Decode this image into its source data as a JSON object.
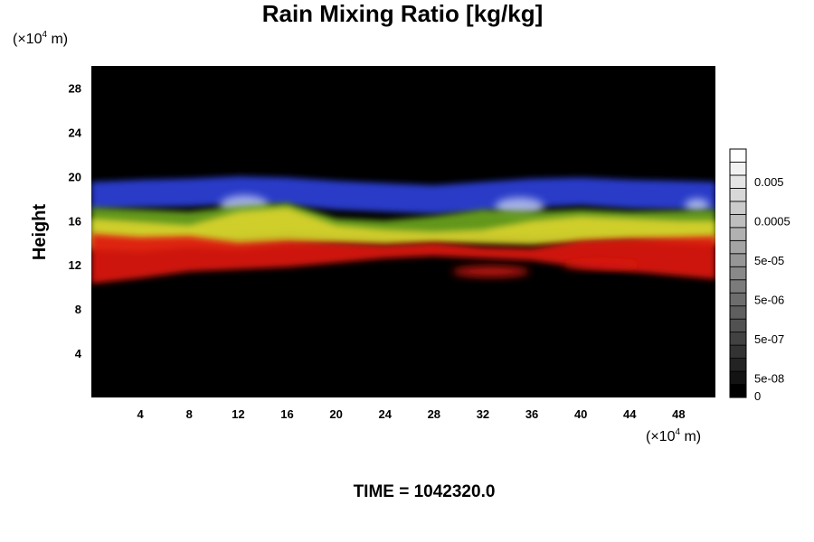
{
  "chart_data": {
    "type": "heatmap",
    "title": "Rain Mixing Ratio [kg/kg]",
    "ylabel": "Height",
    "x_unit": {
      "prefix": "(×10",
      "exp": "4",
      "suffix": " m)"
    },
    "y_unit": {
      "prefix": "(×10",
      "exp": "4",
      "suffix": " m)"
    },
    "xlim": [
      0,
      51
    ],
    "ylim": [
      0,
      30
    ],
    "x_ticks": [
      4,
      8,
      12,
      16,
      20,
      24,
      28,
      32,
      36,
      40,
      44,
      48
    ],
    "y_ticks": [
      4,
      8,
      12,
      16,
      20,
      24,
      28
    ],
    "background_color": "#000000",
    "layers": [
      {
        "name": "blue band",
        "color": "#2a3fd8",
        "x": [
          0,
          4,
          8,
          12,
          16,
          20,
          24,
          28,
          32,
          36,
          40,
          44,
          48,
          51
        ],
        "y_top": [
          19.5,
          19.7,
          19.8,
          20.0,
          19.9,
          19.6,
          19.4,
          19.2,
          19.5,
          19.8,
          19.9,
          19.7,
          19.6,
          19.5
        ],
        "y_bottom": [
          17.0,
          17.2,
          17.3,
          17.5,
          17.4,
          17.0,
          16.8,
          16.6,
          16.8,
          17.2,
          17.4,
          17.1,
          17.0,
          16.9
        ]
      },
      {
        "name": "pale blue patches",
        "color": "#b8c4f0",
        "patches": [
          {
            "x": [
              10.5,
              14.5
            ],
            "y": [
              16.4,
              18.3
            ]
          },
          {
            "x": [
              33,
              37
            ],
            "y": [
              16.4,
              18.1
            ]
          },
          {
            "x": [
              48.5,
              50.5
            ],
            "y": [
              16.8,
              18.0
            ]
          }
        ]
      },
      {
        "name": "green band",
        "color": "#6aa41e",
        "x": [
          0,
          4,
          8,
          12,
          16,
          20,
          24,
          28,
          32,
          36,
          40,
          44,
          48,
          51
        ],
        "y_top": [
          17.2,
          17.0,
          16.8,
          17.3,
          17.6,
          16.2,
          16.0,
          16.4,
          17.0,
          16.8,
          17.0,
          16.8,
          16.9,
          17.0
        ],
        "y_bottom": [
          14.2,
          14.0,
          14.4,
          14.5,
          14.8,
          14.6,
          14.5,
          14.4,
          14.6,
          14.5,
          14.6,
          14.5,
          14.4,
          14.3
        ]
      },
      {
        "name": "yellow band",
        "color": "#d8d22a",
        "x": [
          0,
          4,
          8,
          12,
          16,
          20,
          24,
          28,
          32,
          36,
          40,
          44,
          48,
          51
        ],
        "y_top": [
          16.2,
          15.9,
          15.6,
          16.8,
          17.2,
          15.6,
          15.2,
          15.0,
          15.2,
          16.0,
          16.4,
          16.2,
          16.0,
          16.0
        ],
        "y_bottom": [
          13.4,
          13.2,
          13.6,
          13.4,
          13.8,
          13.9,
          13.8,
          14.0,
          13.9,
          13.8,
          14.0,
          14.2,
          14.0,
          13.8
        ]
      },
      {
        "name": "red band",
        "color": "#e01a12",
        "x": [
          0,
          4,
          8,
          12,
          16,
          20,
          24,
          28,
          32,
          36,
          40,
          44,
          48,
          51
        ],
        "y_top": [
          14.8,
          14.5,
          14.6,
          14.0,
          14.2,
          14.0,
          13.8,
          14.0,
          13.6,
          13.5,
          14.2,
          14.4,
          14.5,
          14.6
        ],
        "y_bottom": [
          10.3,
          10.8,
          11.4,
          11.6,
          11.8,
          12.2,
          12.6,
          12.8,
          12.6,
          12.4,
          11.8,
          11.4,
          11.0,
          10.7
        ]
      },
      {
        "name": "red detached patches",
        "color": "#d81812",
        "patches": [
          {
            "x": [
              29.5,
              35.8
            ],
            "y": [
              10.9,
              11.9
            ]
          },
          {
            "x": [
              38.5,
              44.8
            ],
            "y": [
              11.6,
              12.4
            ]
          }
        ]
      }
    ],
    "colorbar": {
      "labels": [
        {
          "value": "0.005",
          "level": 16
        },
        {
          "value": "0.0005",
          "level": 13
        },
        {
          "value": "5e-05",
          "level": 10
        },
        {
          "value": "5e-06",
          "level": 7
        },
        {
          "value": "5e-07",
          "level": 4
        },
        {
          "value": "5e-08",
          "level": 1
        },
        {
          "value": "0",
          "level": -2
        }
      ],
      "levels": 19,
      "color_low": "#000000",
      "color_high": "#ffffff"
    },
    "annotation": "TIME = 1042320.0"
  }
}
